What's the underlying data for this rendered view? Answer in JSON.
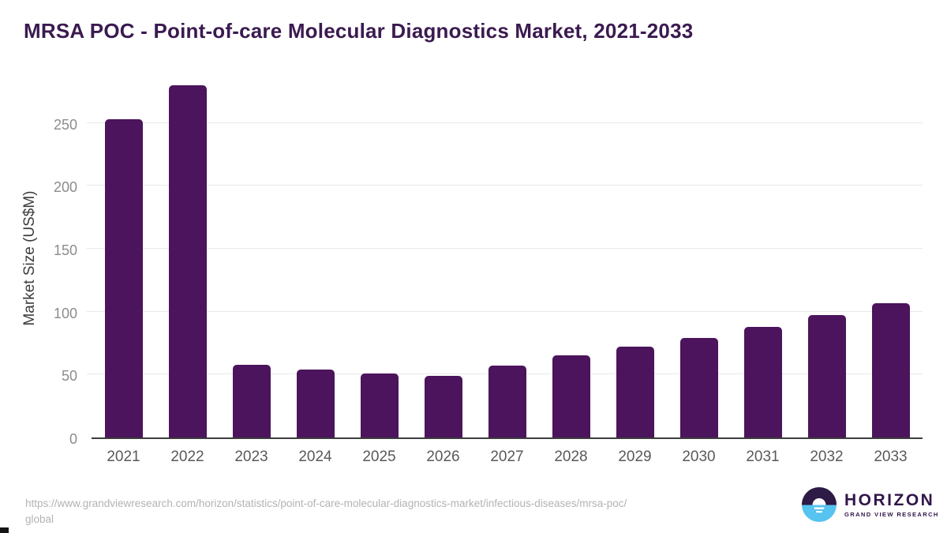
{
  "title": "MRSA POC - Point-of-care Molecular Diagnostics Market, 2021-2033",
  "chart_data": {
    "type": "bar",
    "categories": [
      "2021",
      "2022",
      "2023",
      "2024",
      "2025",
      "2026",
      "2027",
      "2028",
      "2029",
      "2030",
      "2031",
      "2032",
      "2033"
    ],
    "values": [
      253,
      280,
      58,
      54,
      51,
      49,
      57,
      65,
      72,
      79,
      88,
      97,
      107
    ],
    "title": "MRSA POC - Point-of-care Molecular Diagnostics Market, 2021-2033",
    "xlabel": "",
    "ylabel": "Market Size (US$M)",
    "ylim": [
      0,
      290
    ],
    "yticks": [
      0,
      50,
      100,
      150,
      200,
      250
    ],
    "grid": true,
    "legend": "none",
    "bar_color": "#4b145c"
  },
  "colors": {
    "title_text": "#3b1a50",
    "bar": "#4b145c",
    "gridline": "#e8e8e8",
    "baseline": "#3d3d3d",
    "y_tick_text": "#8c8c8c",
    "x_tick_text": "#595959",
    "url_text": "#b3b3b3",
    "logo_dark_purple": "#2d1a45",
    "logo_light_blue": "#56c3f0"
  },
  "footer": {
    "source_url_line1": "https://www.grandviewresearch.com/horizon/statistics/point-of-care-molecular-diagnostics-market/infectious-diseases/mrsa-poc/",
    "source_url_line2": "global",
    "logo_name": "HORIZON",
    "logo_subtitle": "GRAND VIEW RESEARCH"
  }
}
